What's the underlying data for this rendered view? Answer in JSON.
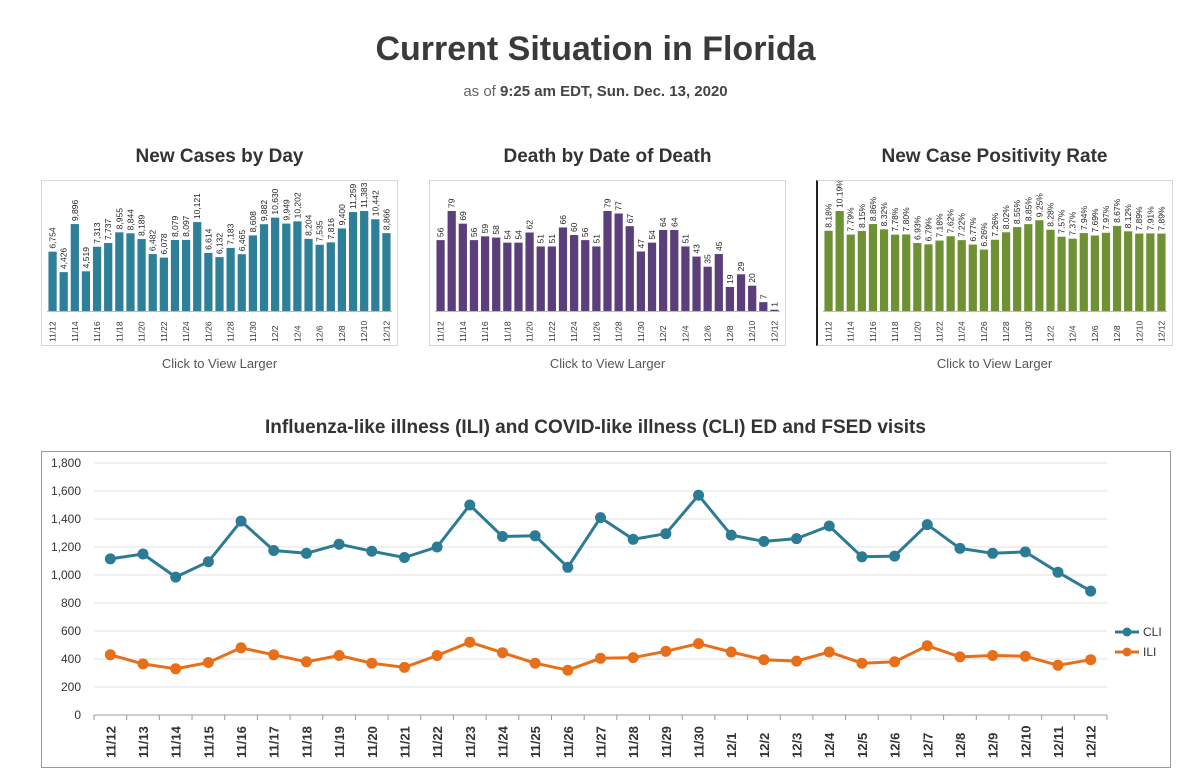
{
  "header": {
    "title": "Current Situation in Florida",
    "subtitle_prefix": "as of",
    "subtitle_time": "9:25 am EDT, Sun. Dec. 13, 2020"
  },
  "panels": [
    {
      "title": "New Cases by Day",
      "link": "Click to View Larger"
    },
    {
      "title": "Death by Date of Death",
      "link": "Click to View Larger"
    },
    {
      "title": "New Case Positivity Rate",
      "link": "Click to View Larger"
    }
  ],
  "chart_data": [
    {
      "type": "bar",
      "title": "New Cases by Day",
      "color": "#2e7f98",
      "tick_labels": [
        "11/12",
        "11/14",
        "11/16",
        "11/18",
        "11/20",
        "11/22",
        "11/24",
        "11/26",
        "11/28",
        "11/30",
        "12/2",
        "12/4",
        "12/6",
        "12/8",
        "12/10",
        "12/12"
      ],
      "labels": [
        "6,754",
        "4,426",
        "9,896",
        "4,519",
        "7,313",
        "7,737",
        "8,955",
        "8,844",
        "8,189",
        "6,482",
        "6,078",
        "8,079",
        "8,097",
        "10,121",
        "6,614",
        "6,132",
        "7,183",
        "6,465",
        "8,608",
        "9,882",
        "10,630",
        "9,949",
        "10,202",
        "8,204",
        "7,535",
        "7,816",
        "9,400",
        "11,259",
        "11,383",
        "10,442",
        "8,866"
      ],
      "values": [
        6754,
        4426,
        9896,
        4519,
        7313,
        7737,
        8955,
        8844,
        8189,
        6482,
        6078,
        8079,
        8097,
        10121,
        6614,
        6132,
        7183,
        6465,
        8608,
        9882,
        10630,
        9949,
        10202,
        8204,
        7535,
        7816,
        9400,
        11259,
        11383,
        10442,
        8866
      ]
    },
    {
      "type": "bar",
      "title": "Death by Date of Death",
      "color": "#5b3f7a",
      "tick_labels": [
        "11/12",
        "11/14",
        "11/16",
        "11/18",
        "11/20",
        "11/22",
        "11/24",
        "11/26",
        "11/28",
        "11/30",
        "12/2",
        "12/4",
        "12/6",
        "12/8",
        "12/10",
        "12/12"
      ],
      "labels": [
        "56",
        "79",
        "69",
        "56",
        "59",
        "58",
        "54",
        "54",
        "62",
        "51",
        "51",
        "66",
        "60",
        "56",
        "51",
        "79",
        "77",
        "67",
        "47",
        "54",
        "64",
        "64",
        "51",
        "43",
        "35",
        "45",
        "19",
        "29",
        "20",
        "7",
        "1"
      ],
      "values": [
        56,
        79,
        69,
        56,
        59,
        58,
        54,
        54,
        62,
        51,
        51,
        66,
        60,
        56,
        51,
        79,
        77,
        67,
        47,
        54,
        64,
        64,
        51,
        43,
        35,
        45,
        19,
        29,
        20,
        7,
        1
      ]
    },
    {
      "type": "bar",
      "title": "New Case Positivity Rate",
      "color": "#6e9134",
      "tick_labels": [
        "11/12",
        "11/14",
        "11/16",
        "11/18",
        "11/20",
        "11/22",
        "11/24",
        "11/26",
        "11/28",
        "11/30",
        "12/2",
        "12/4",
        "12/6",
        "12/8",
        "12/10",
        "12/12"
      ],
      "labels": [
        "8.18%",
        "10.19%",
        "7.79%",
        "8.15%",
        "8.86%",
        "8.32%",
        "7.78%",
        "7.80%",
        "6.93%",
        "6.79%",
        "7.18%",
        "7.62%",
        "7.22%",
        "6.77%",
        "6.26%",
        "7.26%",
        "8.02%",
        "8.55%",
        "8.85%",
        "9.25%",
        "8.28%",
        "7.57%",
        "7.37%",
        "7.94%",
        "7.69%",
        "7.97%",
        "8.67%",
        "8.12%",
        "7.89%",
        "7.91%",
        "7.89%"
      ],
      "values": [
        8.18,
        10.19,
        7.79,
        8.15,
        8.86,
        8.32,
        7.78,
        7.8,
        6.93,
        6.79,
        7.18,
        7.62,
        7.22,
        6.77,
        6.26,
        7.26,
        8.02,
        8.55,
        8.85,
        9.25,
        8.28,
        7.57,
        7.37,
        7.94,
        7.69,
        7.97,
        8.67,
        8.12,
        7.89,
        7.91,
        7.89
      ]
    },
    {
      "type": "line",
      "title": "Influenza-like illness (ILI) and COVID-like illness (CLI) ED and FSED visits",
      "categories": [
        "11/12",
        "11/13",
        "11/14",
        "11/15",
        "11/16",
        "11/17",
        "11/18",
        "11/19",
        "11/20",
        "11/21",
        "11/22",
        "11/23",
        "11/24",
        "11/25",
        "11/26",
        "11/27",
        "11/28",
        "11/29",
        "11/30",
        "12/1",
        "12/2",
        "12/3",
        "12/4",
        "12/5",
        "12/6",
        "12/7",
        "12/8",
        "12/9",
        "12/10",
        "12/11",
        "12/12"
      ],
      "ylim": [
        0,
        1800
      ],
      "yticks": [
        "0",
        "200",
        "400",
        "600",
        "800",
        "1,000",
        "1,200",
        "1,400",
        "1,600",
        "1,800"
      ],
      "ytick_values": [
        0,
        200,
        400,
        600,
        800,
        1000,
        1200,
        1400,
        1600,
        1800
      ],
      "legend_position": "right",
      "series": [
        {
          "name": "CLI",
          "color": "#2c7b95",
          "values": [
            1115,
            1150,
            985,
            1095,
            1385,
            1175,
            1155,
            1220,
            1170,
            1125,
            1200,
            1500,
            1275,
            1280,
            1055,
            1410,
            1255,
            1295,
            1570,
            1285,
            1240,
            1260,
            1350,
            1130,
            1135,
            1360,
            1190,
            1155,
            1165,
            1020,
            885
          ]
        },
        {
          "name": "ILI",
          "color": "#e86f1a",
          "values": [
            430,
            365,
            330,
            375,
            480,
            430,
            380,
            425,
            370,
            340,
            425,
            520,
            445,
            370,
            320,
            405,
            410,
            455,
            510,
            450,
            395,
            385,
            450,
            370,
            380,
            495,
            415,
            425,
            420,
            355,
            395
          ]
        }
      ]
    }
  ]
}
